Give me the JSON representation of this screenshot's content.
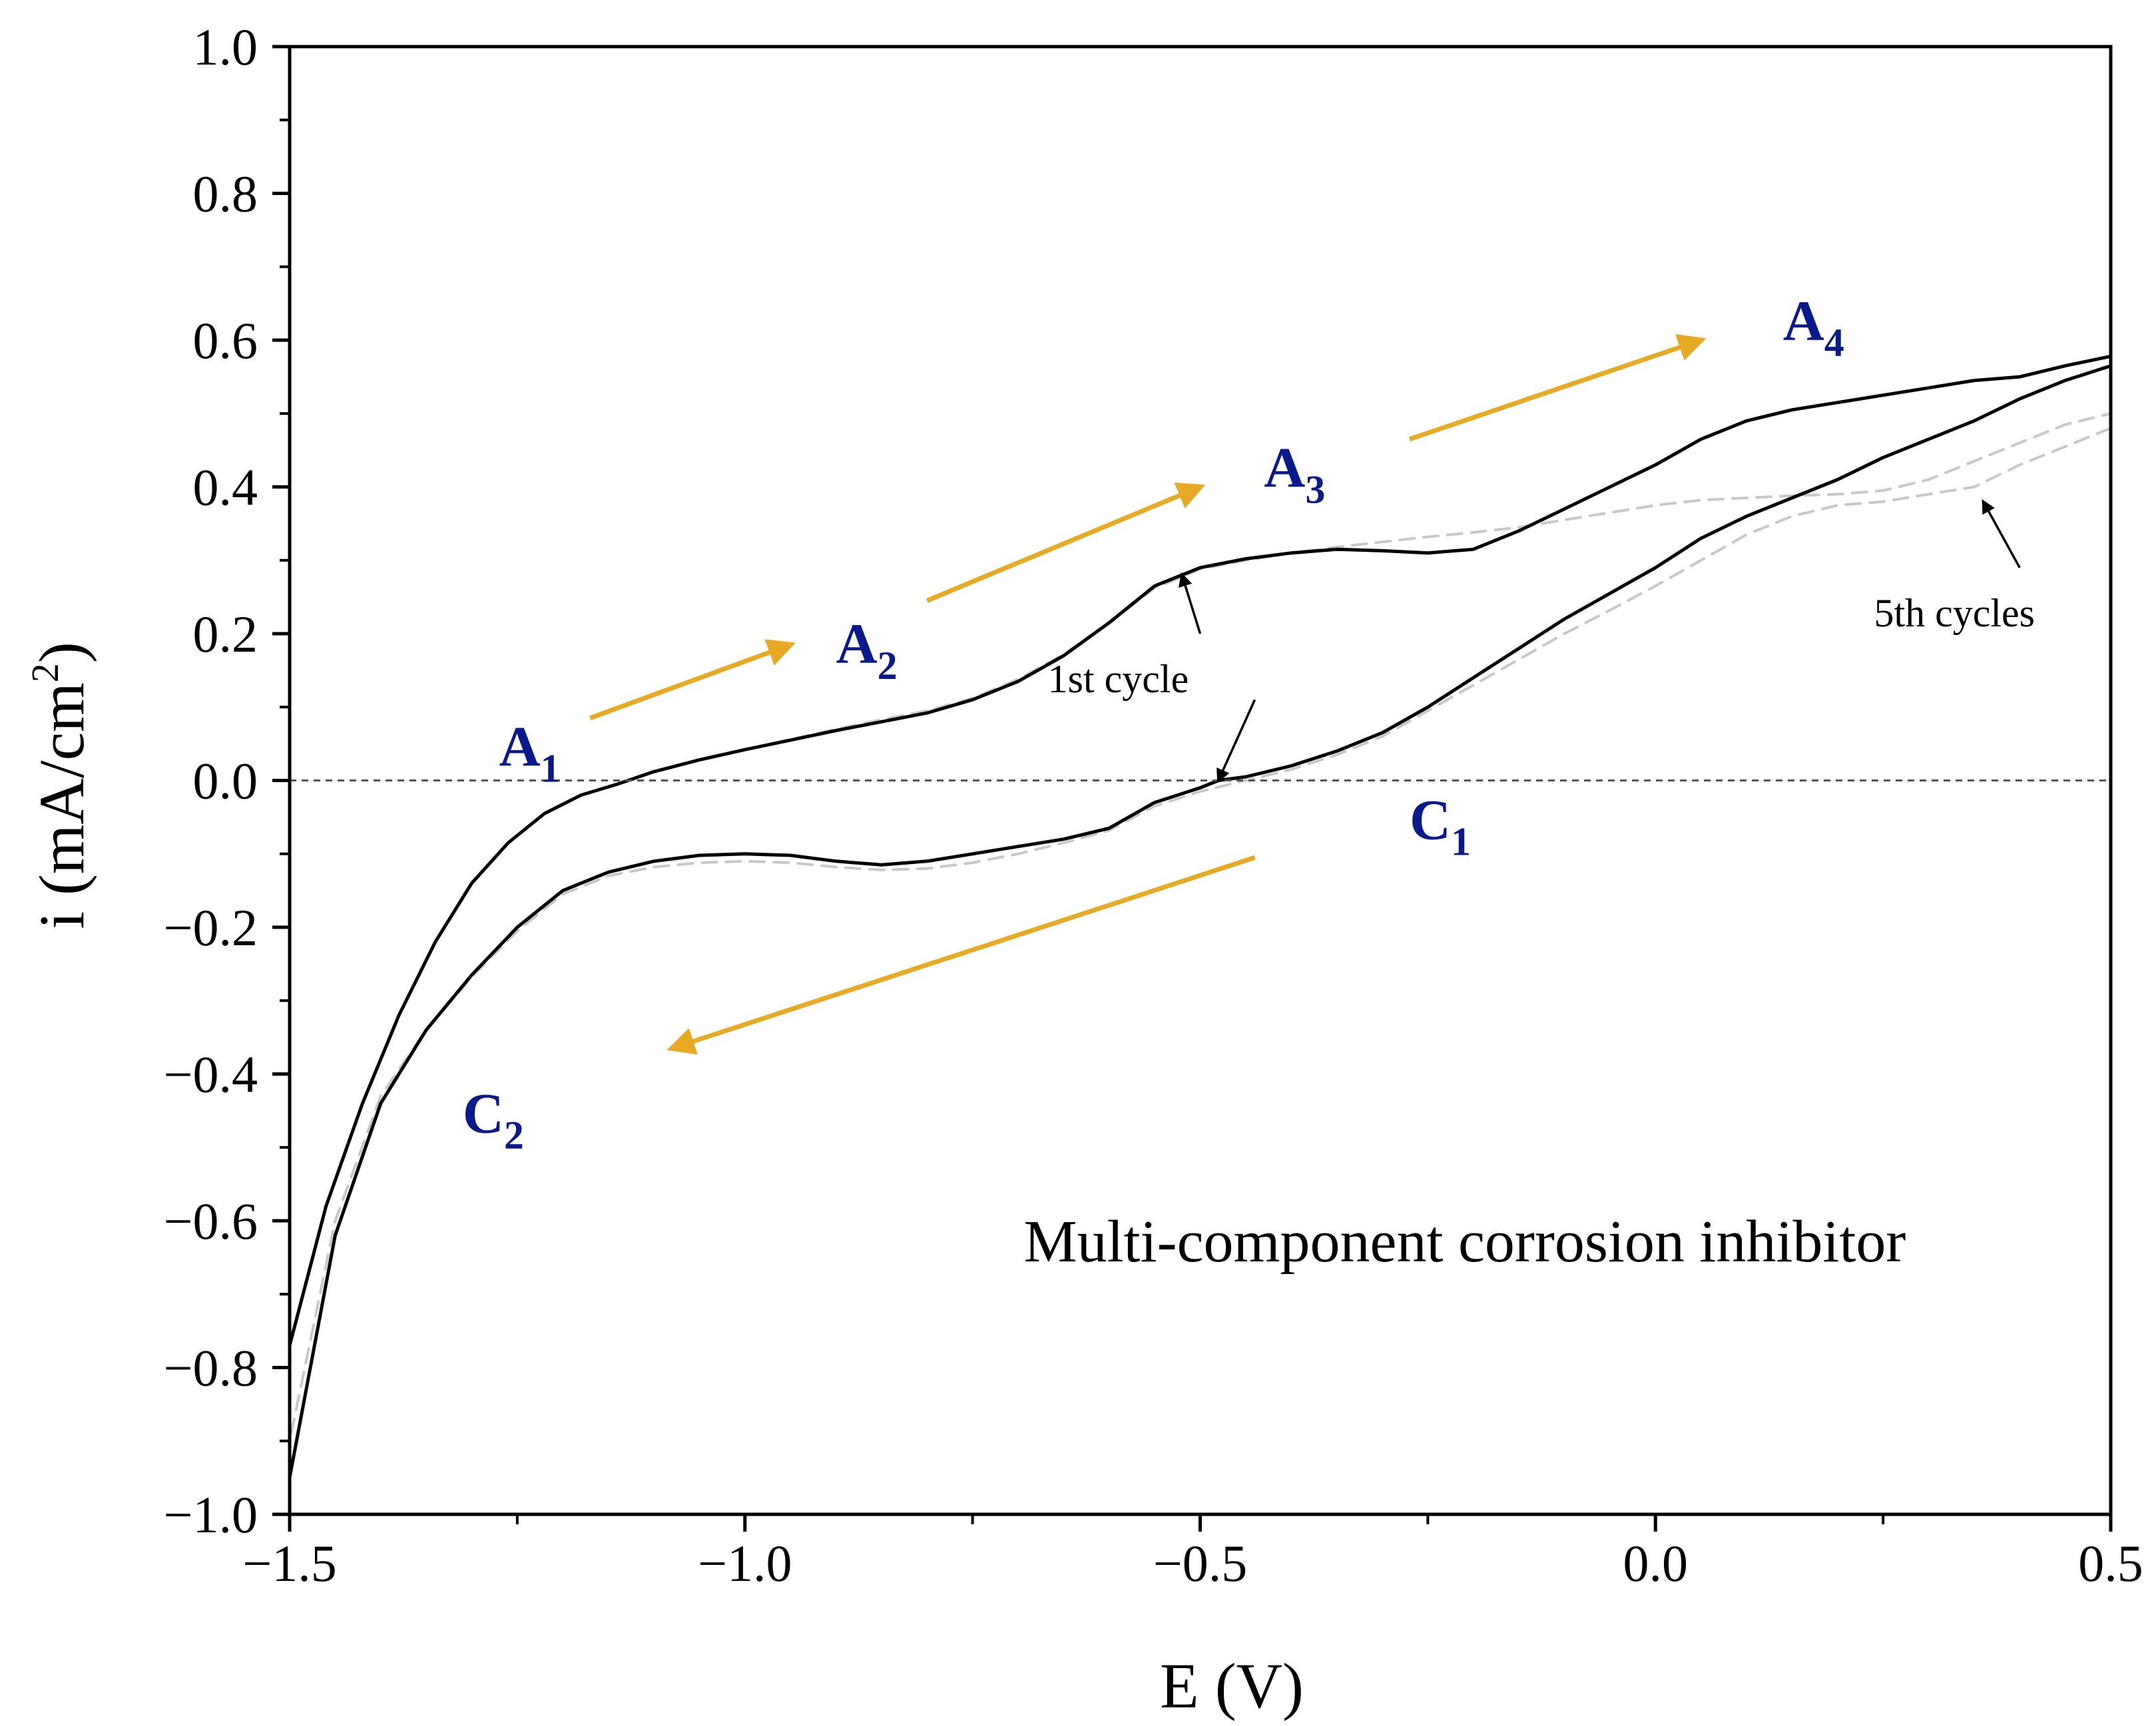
{
  "chart_data": {
    "type": "line",
    "title": "",
    "xlabel": "E (V)",
    "ylabel_base": "i (mA/cm",
    "ylabel_sup": "2",
    "ylabel_close": ")",
    "xlim": [
      -1.5,
      0.5
    ],
    "ylim": [
      -1.0,
      1.0
    ],
    "grid": false,
    "x_ticks": [
      {
        "value": -1.5,
        "label": "−1.5"
      },
      {
        "value": -1.0,
        "label": "−1.0"
      },
      {
        "value": -0.5,
        "label": "−0.5"
      },
      {
        "value": 0.0,
        "label": "0.0"
      },
      {
        "value": 0.5,
        "label": "0.5"
      }
    ],
    "x_minor_ticks": [
      -1.25,
      -0.75,
      -0.25,
      0.25
    ],
    "y_ticks": [
      {
        "value": 1.0,
        "label": "1.0"
      },
      {
        "value": 0.8,
        "label": "0.8"
      },
      {
        "value": 0.6,
        "label": "0.6"
      },
      {
        "value": 0.4,
        "label": "0.4"
      },
      {
        "value": 0.2,
        "label": "0.2"
      },
      {
        "value": 0.0,
        "label": "0.0"
      },
      {
        "value": -0.2,
        "label": "−0.2"
      },
      {
        "value": -0.4,
        "label": "−0.4"
      },
      {
        "value": -0.6,
        "label": "−0.6"
      },
      {
        "value": -0.8,
        "label": "−0.8"
      },
      {
        "value": -1.0,
        "label": "−1.0"
      }
    ],
    "y_minor_ticks": [
      0.9,
      0.7,
      0.5,
      0.3,
      0.1,
      -0.1,
      -0.3,
      -0.5,
      -0.7,
      -0.9
    ],
    "zero_line": 0.0,
    "series": [
      {
        "name": "1st cycle anodic",
        "style": "solid",
        "color": "#000000",
        "points": [
          [
            -1.5,
            -0.77
          ],
          [
            -1.46,
            -0.58
          ],
          [
            -1.42,
            -0.44
          ],
          [
            -1.38,
            -0.32
          ],
          [
            -1.34,
            -0.22
          ],
          [
            -1.3,
            -0.14
          ],
          [
            -1.26,
            -0.085
          ],
          [
            -1.22,
            -0.045
          ],
          [
            -1.18,
            -0.02
          ],
          [
            -1.14,
            -0.005
          ],
          [
            -1.1,
            0.012
          ],
          [
            -1.05,
            0.028
          ],
          [
            -1.0,
            0.042
          ],
          [
            -0.95,
            0.055
          ],
          [
            -0.9,
            0.068
          ],
          [
            -0.85,
            0.08
          ],
          [
            -0.8,
            0.092
          ],
          [
            -0.75,
            0.11
          ],
          [
            -0.7,
            0.135
          ],
          [
            -0.65,
            0.17
          ],
          [
            -0.6,
            0.215
          ],
          [
            -0.55,
            0.265
          ],
          [
            -0.5,
            0.29
          ],
          [
            -0.45,
            0.302
          ],
          [
            -0.4,
            0.31
          ],
          [
            -0.35,
            0.315
          ],
          [
            -0.3,
            0.313
          ],
          [
            -0.25,
            0.31
          ],
          [
            -0.2,
            0.315
          ],
          [
            -0.15,
            0.34
          ],
          [
            -0.1,
            0.37
          ],
          [
            -0.05,
            0.4
          ],
          [
            0.0,
            0.43
          ],
          [
            0.05,
            0.465
          ],
          [
            0.1,
            0.49
          ],
          [
            0.15,
            0.505
          ],
          [
            0.2,
            0.515
          ],
          [
            0.25,
            0.525
          ],
          [
            0.3,
            0.535
          ],
          [
            0.35,
            0.545
          ],
          [
            0.4,
            0.55
          ],
          [
            0.45,
            0.565
          ],
          [
            0.5,
            0.578
          ]
        ]
      },
      {
        "name": "1st cycle cathodic",
        "style": "solid",
        "color": "#000000",
        "points": [
          [
            0.5,
            0.565
          ],
          [
            0.45,
            0.545
          ],
          [
            0.4,
            0.52
          ],
          [
            0.35,
            0.49
          ],
          [
            0.3,
            0.465
          ],
          [
            0.25,
            0.44
          ],
          [
            0.2,
            0.41
          ],
          [
            0.15,
            0.385
          ],
          [
            0.1,
            0.36
          ],
          [
            0.05,
            0.33
          ],
          [
            0.0,
            0.29
          ],
          [
            -0.05,
            0.255
          ],
          [
            -0.1,
            0.22
          ],
          [
            -0.15,
            0.18
          ],
          [
            -0.2,
            0.14
          ],
          [
            -0.25,
            0.1
          ],
          [
            -0.3,
            0.065
          ],
          [
            -0.35,
            0.04
          ],
          [
            -0.4,
            0.02
          ],
          [
            -0.45,
            0.005
          ],
          [
            -0.48,
            0.0
          ],
          [
            -0.5,
            -0.01
          ],
          [
            -0.55,
            -0.03
          ],
          [
            -0.6,
            -0.065
          ],
          [
            -0.65,
            -0.08
          ],
          [
            -0.7,
            -0.09
          ],
          [
            -0.75,
            -0.1
          ],
          [
            -0.8,
            -0.11
          ],
          [
            -0.85,
            -0.115
          ],
          [
            -0.9,
            -0.11
          ],
          [
            -0.95,
            -0.102
          ],
          [
            -1.0,
            -0.1
          ],
          [
            -1.05,
            -0.102
          ],
          [
            -1.1,
            -0.11
          ],
          [
            -1.15,
            -0.125
          ],
          [
            -1.2,
            -0.15
          ],
          [
            -1.25,
            -0.2
          ],
          [
            -1.3,
            -0.265
          ],
          [
            -1.35,
            -0.34
          ],
          [
            -1.4,
            -0.44
          ],
          [
            -1.45,
            -0.62
          ],
          [
            -1.5,
            -0.95
          ]
        ]
      },
      {
        "name": "5th cycle anodic",
        "style": "dashed",
        "color": "#c8c8c8",
        "points": [
          [
            -1.5,
            -0.77
          ],
          [
            -1.46,
            -0.58
          ],
          [
            -1.42,
            -0.44
          ],
          [
            -1.38,
            -0.32
          ],
          [
            -1.34,
            -0.22
          ],
          [
            -1.3,
            -0.14
          ],
          [
            -1.26,
            -0.085
          ],
          [
            -1.22,
            -0.045
          ],
          [
            -1.18,
            -0.02
          ],
          [
            -1.14,
            -0.005
          ],
          [
            -1.1,
            0.012
          ],
          [
            -1.05,
            0.028
          ],
          [
            -1.0,
            0.042
          ],
          [
            -0.95,
            0.056
          ],
          [
            -0.9,
            0.07
          ],
          [
            -0.85,
            0.083
          ],
          [
            -0.8,
            0.095
          ],
          [
            -0.75,
            0.112
          ],
          [
            -0.7,
            0.138
          ],
          [
            -0.65,
            0.172
          ],
          [
            -0.6,
            0.215
          ],
          [
            -0.55,
            0.262
          ],
          [
            -0.5,
            0.288
          ],
          [
            -0.45,
            0.3
          ],
          [
            -0.4,
            0.31
          ],
          [
            -0.35,
            0.318
          ],
          [
            -0.3,
            0.325
          ],
          [
            -0.25,
            0.332
          ],
          [
            -0.2,
            0.338
          ],
          [
            -0.15,
            0.345
          ],
          [
            -0.1,
            0.355
          ],
          [
            -0.05,
            0.365
          ],
          [
            0.0,
            0.375
          ],
          [
            0.05,
            0.382
          ],
          [
            0.1,
            0.385
          ],
          [
            0.15,
            0.388
          ],
          [
            0.2,
            0.39
          ],
          [
            0.25,
            0.395
          ],
          [
            0.3,
            0.41
          ],
          [
            0.35,
            0.435
          ],
          [
            0.4,
            0.46
          ],
          [
            0.45,
            0.485
          ],
          [
            0.5,
            0.5
          ]
        ]
      },
      {
        "name": "5th cycle cathodic",
        "style": "dashed",
        "color": "#c8c8c8",
        "points": [
          [
            0.5,
            0.48
          ],
          [
            0.45,
            0.455
          ],
          [
            0.4,
            0.43
          ],
          [
            0.35,
            0.4
          ],
          [
            0.3,
            0.39
          ],
          [
            0.25,
            0.38
          ],
          [
            0.2,
            0.375
          ],
          [
            0.15,
            0.36
          ],
          [
            0.1,
            0.335
          ],
          [
            0.05,
            0.3
          ],
          [
            0.0,
            0.265
          ],
          [
            -0.05,
            0.232
          ],
          [
            -0.1,
            0.2
          ],
          [
            -0.15,
            0.165
          ],
          [
            -0.2,
            0.13
          ],
          [
            -0.25,
            0.095
          ],
          [
            -0.3,
            0.06
          ],
          [
            -0.35,
            0.035
          ],
          [
            -0.4,
            0.015
          ],
          [
            -0.45,
            0.0
          ],
          [
            -0.5,
            -0.015
          ],
          [
            -0.55,
            -0.035
          ],
          [
            -0.6,
            -0.068
          ],
          [
            -0.65,
            -0.085
          ],
          [
            -0.7,
            -0.1
          ],
          [
            -0.75,
            -0.112
          ],
          [
            -0.8,
            -0.12
          ],
          [
            -0.85,
            -0.122
          ],
          [
            -0.9,
            -0.118
          ],
          [
            -0.95,
            -0.112
          ],
          [
            -1.0,
            -0.11
          ],
          [
            -1.05,
            -0.112
          ],
          [
            -1.1,
            -0.118
          ],
          [
            -1.15,
            -0.13
          ],
          [
            -1.2,
            -0.155
          ],
          [
            -1.25,
            -0.205
          ],
          [
            -1.3,
            -0.268
          ],
          [
            -1.35,
            -0.34
          ],
          [
            -1.4,
            -0.43
          ],
          [
            -1.45,
            -0.6
          ],
          [
            -1.5,
            -0.9
          ]
        ]
      }
    ],
    "scan_arrows": [
      {
        "from": [
          -1.17,
          0.085
        ],
        "to": [
          -0.95,
          0.185
        ]
      },
      {
        "from": [
          -0.8,
          0.245
        ],
        "to": [
          -0.5,
          0.4
        ]
      },
      {
        "from": [
          -0.27,
          0.465
        ],
        "to": [
          0.05,
          0.6
        ]
      },
      {
        "from": [
          -0.44,
          -0.105
        ],
        "to": [
          -1.08,
          -0.365
        ]
      }
    ],
    "peak_labels": [
      {
        "base": "A",
        "sub": "1",
        "x": -1.27,
        "y": 0.02
      },
      {
        "base": "A",
        "sub": "2",
        "x": -0.9,
        "y": 0.16
      },
      {
        "base": "A",
        "sub": "3",
        "x": -0.43,
        "y": 0.4
      },
      {
        "base": "A",
        "sub": "4",
        "x": 0.14,
        "y": 0.6
      },
      {
        "base": "C",
        "sub": "1",
        "x": -0.27,
        "y": -0.08
      },
      {
        "base": "C",
        "sub": "2",
        "x": -1.31,
        "y": -0.48
      }
    ],
    "annotations": [
      {
        "text": "1st cycle",
        "text_at": [
          -0.59,
          0.12
        ]
      },
      {
        "text": "5th cycles",
        "text_at": [
          0.24,
          0.21
        ]
      }
    ],
    "pointer_arrows": [
      {
        "from": [
          -0.5,
          0.2
        ],
        "to": [
          -0.52,
          0.28
        ]
      },
      {
        "from": [
          -0.44,
          0.11
        ],
        "to": [
          -0.48,
          0.0
        ]
      },
      {
        "from": [
          0.4,
          0.29
        ],
        "to": [
          0.36,
          0.38
        ]
      }
    ],
    "plot_annotation": "Multi-component corrosion inhibitor",
    "colors": {
      "axis": "#000000",
      "zero_line": "#555555",
      "scan_arrow": "#e8a924",
      "peak_label": "#0a1a8c",
      "cycle1": "#000000",
      "cycle5": "#c8c8c8"
    }
  }
}
